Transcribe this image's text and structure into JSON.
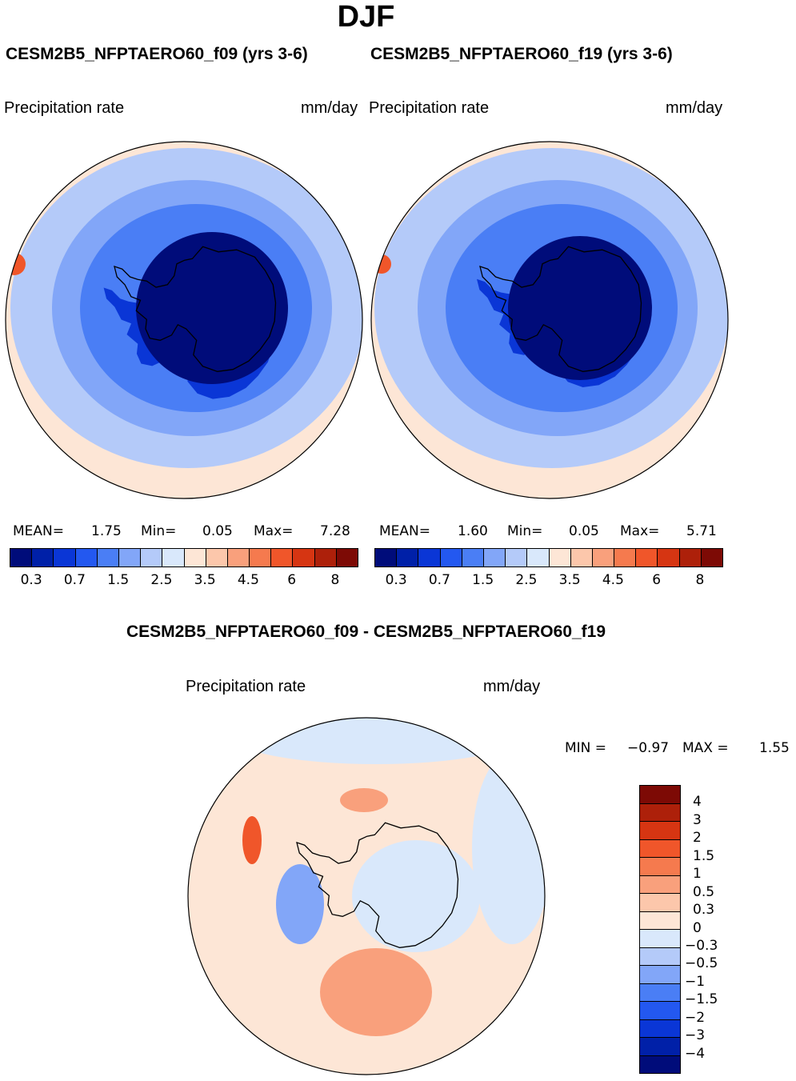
{
  "title": "DJF",
  "panels": [
    {
      "case": "CESM2B5_NFPTAERO60_f09 (yrs 3-6)",
      "left_label": "Precipitation rate",
      "right_label": "mm/day",
      "mean_label": "MEAN=",
      "mean_value": "1.75",
      "min_label": "Min=",
      "min_value": "0.05",
      "max_label": "Max=",
      "max_value": "7.28"
    },
    {
      "case": "CESM2B5_NFPTAERO60_f19 (yrs 3-6)",
      "left_label": "Precipitation rate",
      "right_label": "mm/day",
      "mean_label": "MEAN=",
      "mean_value": "1.60",
      "min_label": "Min=",
      "min_value": "0.05",
      "max_label": "Max=",
      "max_value": "5.71"
    }
  ],
  "main_colorbar": {
    "colors": [
      "#000c7a",
      "#0020a8",
      "#0a36d6",
      "#2358f0",
      "#4a7ef5",
      "#82a6f8",
      "#b4caf9",
      "#d9e8fb",
      "#fde6d6",
      "#fcc7ab",
      "#f9a07c",
      "#f57a4e",
      "#f0562a",
      "#d63512",
      "#ad200a",
      "#7d0a05"
    ],
    "ticks": [
      "0.3",
      "0.7",
      "1.5",
      "2.5",
      "3.5",
      "4.5",
      "6",
      "8"
    ]
  },
  "diff": {
    "case": "CESM2B5_NFPTAERO60_f09 - CESM2B5_NFPTAERO60_f19",
    "left_label": "Precipitation rate",
    "right_label": "mm/day",
    "min_label": "MIN =",
    "min_value": "−0.97",
    "max_label": "MAX =",
    "max_value": "1.55"
  },
  "diff_colorbar": {
    "colors": [
      "#7d0a05",
      "#ad200a",
      "#d63512",
      "#f0562a",
      "#f57a4e",
      "#f9a07c",
      "#fcc7ab",
      "#fde6d6",
      "#d9e8fb",
      "#b4caf9",
      "#82a6f8",
      "#4a7ef5",
      "#2358f0",
      "#0a36d6",
      "#0020a8",
      "#000c7a"
    ],
    "ticks": [
      "4",
      "3",
      "2",
      "1.5",
      "1",
      "0.5",
      "0.3",
      "0",
      "−0.3",
      "−0.5",
      "−1",
      "−1.5",
      "−2",
      "−3",
      "−4"
    ]
  },
  "colors": {
    "ocean_far": "#fde6d6",
    "ocean_mid": "#b4caf9",
    "ocean_near": "#4a7ef5",
    "interior": "#000c7a",
    "diff_bg": "#fde6d6",
    "diff_neg": "#d9e8fb",
    "diff_pos": "#f9a07c"
  }
}
